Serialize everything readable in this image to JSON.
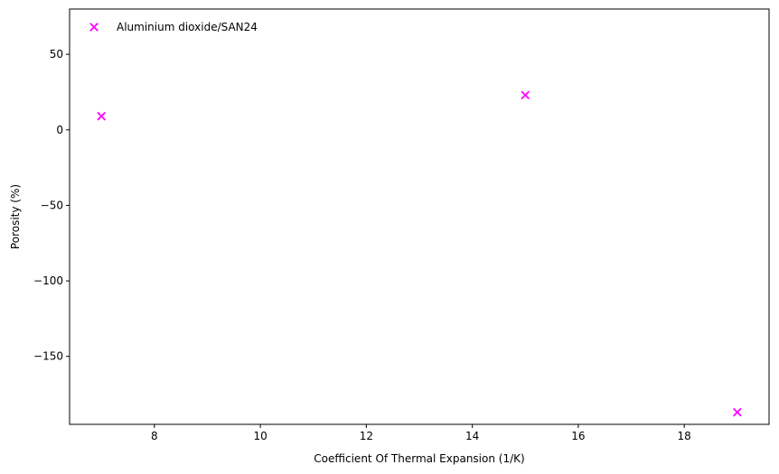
{
  "chart_data": {
    "type": "scatter",
    "title": "",
    "xlabel": "Coefficient Of Thermal Expansion (1/K)",
    "ylabel": "Porosity (%)",
    "xlim": [
      6.4,
      19.6
    ],
    "ylim": [
      -195,
      80
    ],
    "xticks": [
      8,
      10,
      12,
      14,
      16,
      18
    ],
    "yticks": [
      50,
      0,
      -50,
      -100,
      -150
    ],
    "ytick_labels": [
      "50",
      "0",
      "−50",
      "−100",
      "−150"
    ],
    "grid": false,
    "legend_position": "top-left",
    "series": [
      {
        "name": "Aluminium dioxide/SAN24",
        "marker": "x",
        "color": "#ff00ff",
        "points": [
          {
            "x": 7,
            "y": 9
          },
          {
            "x": 15,
            "y": 23
          },
          {
            "x": 19,
            "y": -187
          }
        ]
      }
    ]
  }
}
